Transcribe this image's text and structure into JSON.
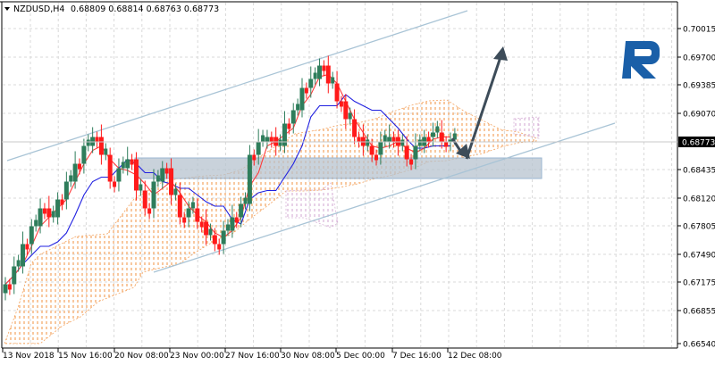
{
  "header": {
    "menu_icon": "triangle-down-icon",
    "symbol": "NZDUSD,H4",
    "ohlc": "0.68809 0.68814 0.68763 0.68773"
  },
  "price_axis": {
    "labels": [
      "0.70015",
      "0.69700",
      "0.69385",
      "0.69070",
      "0.68435",
      "0.68120",
      "0.67805",
      "0.67490",
      "0.67175",
      "0.66855",
      "0.66540"
    ],
    "current_price": "0.68773"
  },
  "time_axis": {
    "labels": [
      "13 Nov 2018",
      "15 Nov 16:00",
      "20 Nov 08:00",
      "23 Nov 00:00",
      "27 Nov 16:00",
      "30 Nov 08:00",
      "5 Dec 00:00",
      "7 Dec 16:00",
      "12 Dec 08:00"
    ]
  },
  "logo": {
    "icon": "roboforex-logo-icon",
    "color": "#1a5fa8"
  },
  "colors": {
    "bull": "#2e7d5b",
    "bear": "#ff1a1a",
    "tenkan": "#ff3b3b",
    "kijun": "#2020e0",
    "cloud_up": "#f4a460",
    "cloud_down": "#d8b4d8",
    "channel": "#a9c4d6",
    "zone": "#b7c3cf",
    "arrow": "#3d4c59"
  },
  "chart_data": {
    "type": "candlestick",
    "title": "NZDUSD,H4",
    "symbol": "NZDUSD",
    "timeframe": "H4",
    "last_bar": {
      "open": 0.68809,
      "high": 0.68814,
      "low": 0.68763,
      "close": 0.68773
    },
    "ylim": [
      0.6654,
      0.70015
    ],
    "yticks": [
      0.70015,
      0.697,
      0.69385,
      0.6907,
      0.68755,
      0.68435,
      0.6812,
      0.67805,
      0.6749,
      0.67175,
      0.66855,
      0.6654
    ],
    "xticks": [
      "13 Nov 2018",
      "15 Nov 16:00",
      "20 Nov 08:00",
      "23 Nov 00:00",
      "27 Nov 16:00",
      "30 Nov 08:00",
      "5 Dec 00:00",
      "7 Dec 16:00",
      "12 Dec 08:00"
    ],
    "indicators": [
      "Ichimoku Kinko Hyo (Tenkan-sen red, Kijun-sen blue, Kumo cloud)"
    ],
    "annotations": [
      {
        "type": "channel",
        "description": "Ascending price channel (upper and lower lines)"
      },
      {
        "type": "zone",
        "description": "Support rectangle approx 0.6840–0.6863"
      },
      {
        "type": "arrow",
        "description": "Forecast: dip to ~0.6850 then rise to ~0.6999"
      }
    ],
    "approx_closes": [
      0.6715,
      0.6735,
      0.676,
      0.678,
      0.68,
      0.679,
      0.681,
      0.683,
      0.685,
      0.687,
      0.688,
      0.686,
      0.683,
      0.6845,
      0.6855,
      0.682,
      0.68,
      0.683,
      0.6845,
      0.6815,
      0.679,
      0.68,
      0.6785,
      0.677,
      0.676,
      0.6775,
      0.679,
      0.6805,
      0.686,
      0.6875,
      0.688,
      0.687,
      0.6895,
      0.691,
      0.6935,
      0.6945,
      0.696,
      0.694,
      0.692,
      0.69,
      0.688,
      0.687,
      0.686,
      0.6875,
      0.688,
      0.687,
      0.6855,
      0.687,
      0.688,
      0.6885,
      0.6875,
      0.6877
    ]
  }
}
